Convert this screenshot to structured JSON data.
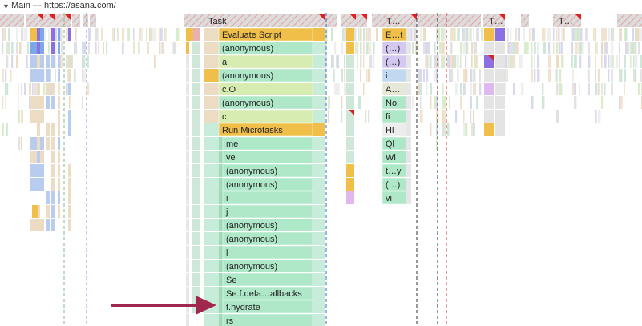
{
  "track": {
    "toggle_icon": "triangle-down-icon",
    "title": "Main — https://asana.com/"
  },
  "flame": {
    "top_tasks": [
      "Task",
      "T…",
      "T…",
      "T…"
    ],
    "main_column": [
      "Evaluate Script",
      "(anonymous)",
      "a",
      "(anonymous)",
      "c.O",
      "(anonymous)",
      "c",
      "Run Microtasks",
      "me",
      "ve",
      "(anonymous)",
      "(anonymous)",
      "i",
      "j",
      "(anonymous)",
      "(anonymous)",
      "l",
      "(anonymous)",
      "Se",
      "Se.f.defa…allbacks",
      "t.hydrate",
      "rs"
    ],
    "right_column": [
      "E…t",
      "(…)",
      "(…)",
      "i",
      "A…",
      "No",
      "fi",
      "Hl",
      "Ql",
      "Wl",
      "t…y",
      "(…)",
      "vi"
    ]
  },
  "annotation": {
    "arrow_icon": "arrow-right-icon",
    "color": "#a0284e",
    "points_to": "t.hydrate"
  },
  "colors": {
    "task": "#c8c8c8",
    "script": "#efbf4a",
    "function_green": "#aee8c8",
    "function_mint": "#c7ecd9",
    "lime": "#d6ecb0",
    "beige": "#ecdcc4",
    "blue": "#7ba8e8",
    "purple": "#8c6fe0",
    "warning": "#e02020"
  }
}
